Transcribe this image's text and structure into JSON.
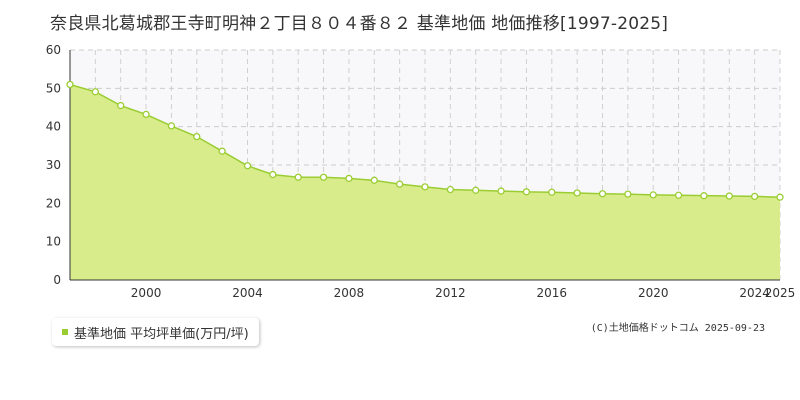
{
  "chart_data": {
    "type": "area",
    "title": "奈良県北葛城郡王寺町明神２丁目８０４番８２ 基準地価 地価推移[1997-2025]",
    "xlabel": "",
    "ylabel": "",
    "x_ticks": [
      2000,
      2004,
      2008,
      2012,
      2016,
      2020,
      2024,
      2025
    ],
    "y_ticks": [
      0,
      10,
      20,
      30,
      40,
      50,
      60
    ],
    "xlim": [
      1997,
      2025
    ],
    "ylim": [
      0,
      60
    ],
    "grid": true,
    "legend_position": "bottom-left",
    "series": [
      {
        "name": "基準地価 平均坪単価(万円/坪)",
        "color": "#9acd32",
        "fill": "#d9ec8c",
        "x": [
          1997,
          1998,
          1999,
          2000,
          2001,
          2002,
          2003,
          2004,
          2005,
          2006,
          2007,
          2008,
          2009,
          2010,
          2011,
          2012,
          2013,
          2014,
          2015,
          2016,
          2017,
          2018,
          2019,
          2020,
          2021,
          2022,
          2023,
          2024,
          2025
        ],
        "values": [
          51.0,
          49.1,
          45.5,
          43.2,
          40.2,
          37.4,
          33.6,
          29.8,
          27.5,
          26.8,
          26.8,
          26.5,
          26.0,
          25.0,
          24.3,
          23.6,
          23.4,
          23.2,
          23.0,
          22.9,
          22.7,
          22.5,
          22.4,
          22.2,
          22.1,
          22.0,
          21.9,
          21.8,
          21.6
        ]
      }
    ]
  },
  "copyright": "(C)土地価格ドットコム 2025-09-23"
}
